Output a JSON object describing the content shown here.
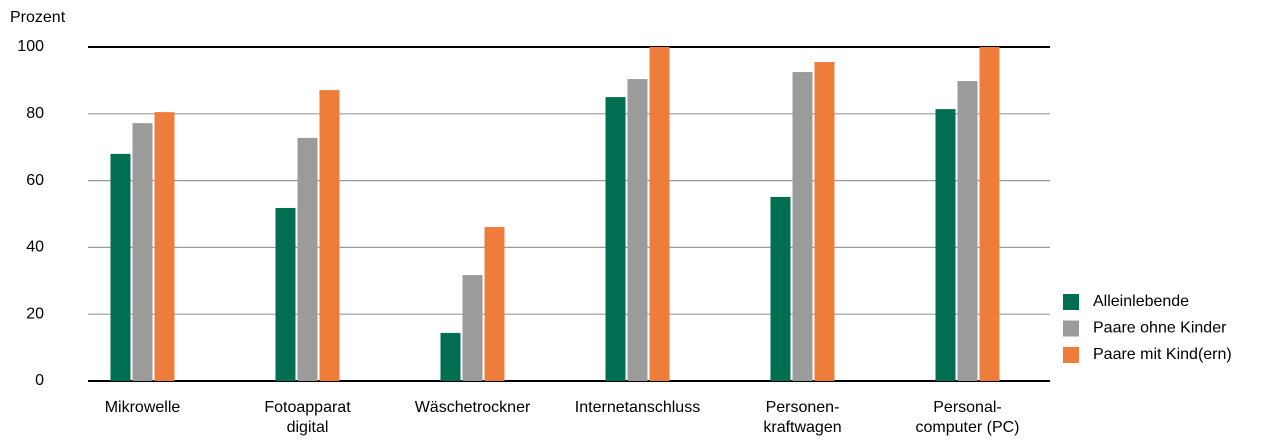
{
  "chart_data": {
    "type": "bar",
    "y_label": "Prozent",
    "categories": [
      [
        "Mikrowelle"
      ],
      [
        "Fotoapparat",
        "digital"
      ],
      [
        "Wäschetrockner"
      ],
      [
        "Internetanschluss"
      ],
      [
        "Personen-",
        "kraftwagen"
      ],
      [
        "Personal-",
        "computer (PC)"
      ]
    ],
    "series": [
      {
        "name": "Alleinlebende",
        "color": "#006f51",
        "values": [
          68,
          51.8,
          14.4,
          85,
          55.1,
          81.4
        ]
      },
      {
        "name": "Paare ohne Kinder",
        "color": "#9b9b9b",
        "values": [
          77.2,
          72.8,
          31.7,
          90.4,
          92.5,
          89.8
        ]
      },
      {
        "name": "Paare mit Kind(ern)",
        "color": "#ee7d3b",
        "values": [
          80.5,
          87.1,
          46.1,
          100,
          95.5,
          100
        ]
      }
    ],
    "ylim": [
      0,
      100
    ],
    "yticks": [
      0,
      20,
      40,
      60,
      80,
      100
    ],
    "grid": true,
    "legend": "right"
  }
}
